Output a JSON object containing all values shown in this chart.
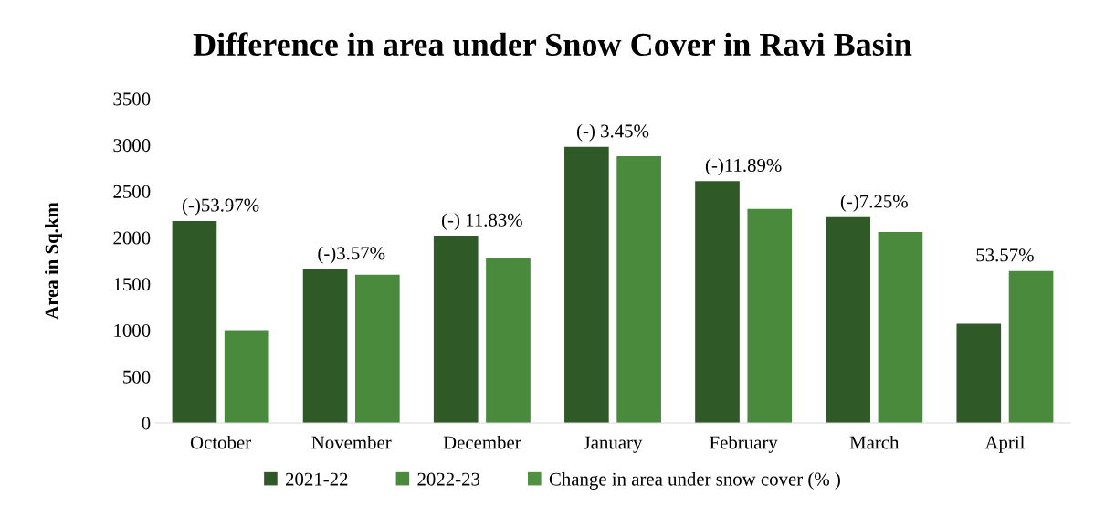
{
  "chart_data": {
    "type": "bar",
    "title": "Difference in area under Snow Cover in Ravi Basin",
    "ylabel": "Area in Sq.km",
    "categories": [
      "October",
      "November",
      "December",
      "January",
      "February",
      "March",
      "April"
    ],
    "series": [
      {
        "name": "2021-22",
        "color": "#2f5a27",
        "values": [
          2180,
          1660,
          2020,
          2980,
          2610,
          2220,
          1070
        ]
      },
      {
        "name": "2022-23",
        "color": "#4a8a3c",
        "values": [
          1000,
          1600,
          1780,
          2880,
          2310,
          2060,
          1640
        ]
      },
      {
        "name": "Change in area under snow cover (% )",
        "color": "#4f9140",
        "values": [
          null,
          null,
          null,
          null,
          null,
          null,
          null
        ]
      }
    ],
    "annotations": [
      "(-)53.97%",
      "(-)3.57%",
      "(-) 11.83%",
      "(-) 3.45%",
      "(-)11.89%",
      "(-)7.25%",
      "53.57%"
    ],
    "ylim": [
      0,
      3500
    ],
    "yticks": [
      0,
      500,
      1000,
      1500,
      2000,
      2500,
      3000,
      3500
    ],
    "grid": false,
    "legend": "bottom"
  }
}
